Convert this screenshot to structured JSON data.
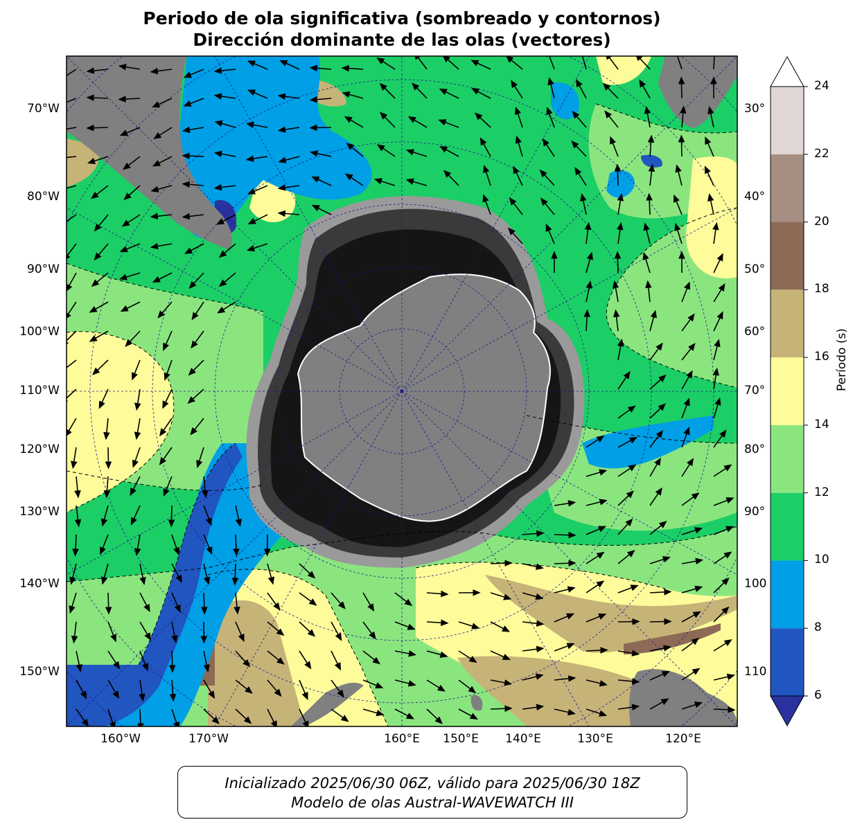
{
  "title_line1": "Periodo de ola significativa (sombreado y contornos)",
  "title_line2": "Dirección dominante de las olas (vectores)",
  "left_lat_labels": [
    "70°W",
    "80°W",
    "90°W",
    "100°W",
    "110°W",
    "120°W",
    "130°W",
    "140°W",
    "150°W"
  ],
  "right_labels": [
    "30°",
    "40°",
    "50°",
    "60°",
    "70°",
    "80°",
    "90°",
    "100",
    "110"
  ],
  "bottom_labels": [
    "160°W",
    "170°W",
    "160°E",
    "150°E",
    "140°E",
    "130°E",
    "120°E"
  ],
  "colorbar": {
    "label": "Período (s)",
    "ticks": [
      "24",
      "22",
      "20",
      "18",
      "16",
      "14",
      "12",
      "10",
      "8",
      "6"
    ],
    "levels": [
      6,
      8,
      10,
      12,
      14,
      16,
      18,
      20,
      22,
      24
    ],
    "colors": [
      "#2155c0",
      "#009fe6",
      "#1cce66",
      "#8be57f",
      "#fdfb9a",
      "#c6b378",
      "#8c6a56",
      "#a78e83",
      "#e0d6d5"
    ],
    "under_color": "#2a32a0",
    "over_color": "#ffffff"
  },
  "map_colors": {
    "land": "#808080",
    "sea_ice_dark": "#151515",
    "sea_ice_mid": "#3a3a3a",
    "sea_ice_light": "#9a9a9a",
    "grid": "#1a1a8c"
  },
  "footer_line1": "Inicializado 2025/06/30 06Z, válido para 2025/06/30 18Z",
  "footer_line2": "Modelo de olas Austral-WAVEWATCH III"
}
